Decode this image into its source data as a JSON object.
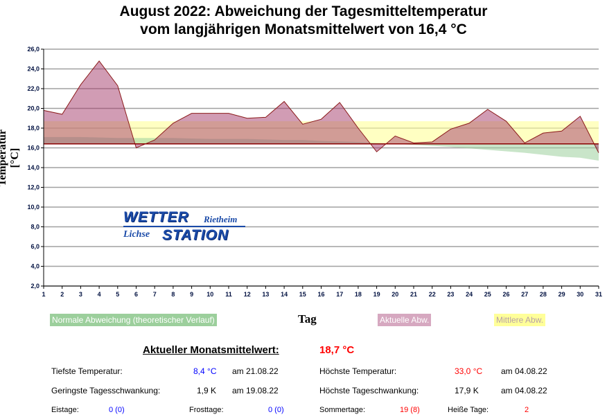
{
  "chart_data": {
    "type": "area",
    "title_line1": "August 2022: Abweichung der Tagesmitteltemperatur",
    "title_line2": "vom langjährigen Monatsmittelwert von 16,4 °C",
    "xlabel": "Tag",
    "ylabel": "Temperatur [°C]",
    "ylim": [
      2,
      26
    ],
    "yticks": [
      "2,0",
      "4,0",
      "6,0",
      "8,0",
      "10,0",
      "12,0",
      "14,0",
      "16,0",
      "18,0",
      "20,0",
      "22,0",
      "24,0",
      "26,0"
    ],
    "x": [
      1,
      2,
      3,
      4,
      5,
      6,
      7,
      8,
      9,
      10,
      11,
      12,
      13,
      14,
      15,
      16,
      17,
      18,
      19,
      20,
      21,
      22,
      23,
      24,
      25,
      26,
      27,
      28,
      29,
      30,
      31
    ],
    "baseline": 16.4,
    "mean": 18.7,
    "series": [
      {
        "name": "Aktuelle Abw.",
        "color": "#c48aa4",
        "values": [
          19.8,
          19.4,
          22.4,
          24.8,
          22.3,
          16.0,
          16.8,
          18.5,
          19.5,
          19.5,
          19.5,
          19.0,
          19.1,
          20.7,
          18.4,
          18.9,
          20.6,
          18.0,
          15.6,
          17.2,
          16.5,
          16.6,
          17.9,
          18.5,
          19.9,
          18.7,
          16.5,
          17.5,
          17.7,
          19.2,
          15.5
        ]
      },
      {
        "name": "Normale Abweichung (theoretischer Verlauf)",
        "color": "#9ccf9c",
        "values": [
          17.1,
          17.1,
          17.1,
          17.05,
          17.0,
          17.0,
          17.0,
          17.0,
          16.95,
          16.9,
          16.9,
          16.9,
          16.85,
          16.8,
          16.8,
          16.7,
          16.65,
          16.6,
          16.5,
          16.4,
          16.3,
          16.2,
          16.1,
          15.95,
          15.8,
          15.65,
          15.5,
          15.3,
          15.1,
          15.0,
          14.7
        ]
      },
      {
        "name": "Mittlere Abw.",
        "color": "#ffff99"
      }
    ],
    "grid": true
  },
  "stats": {
    "monthly_label": "Aktueller Monatsmittelwert:",
    "monthly_value": "18,7 °C",
    "min_label": "Tiefste Temperatur:",
    "min_value": "8,4 °C",
    "min_date": "am 21.08.22",
    "max_label": "Höchste Temperatur:",
    "max_value": "33,0 °C",
    "max_date": "am 04.08.22",
    "minrange_label": "Geringste Tagesschwankung:",
    "minrange_value": "1,9 K",
    "minrange_date": "am 19.08.22",
    "maxrange_label": "Höchste Tageschwankung:",
    "maxrange_value": "17,9 K",
    "maxrange_date": "am 04.08.22",
    "ice_label": "Eistage:",
    "ice_value": "0 (0)",
    "frost_label": "Frosttage:",
    "frost_value": "0 (0)",
    "summer_label": "Sommertage:",
    "summer_value": "19 (8)",
    "hot_label": "Heiße Tage:",
    "hot_value": "2"
  },
  "logo": {
    "line1": "WETTER",
    "line1b": "Rietheim",
    "line2a": "Lichse",
    "line2b": "STATION"
  }
}
